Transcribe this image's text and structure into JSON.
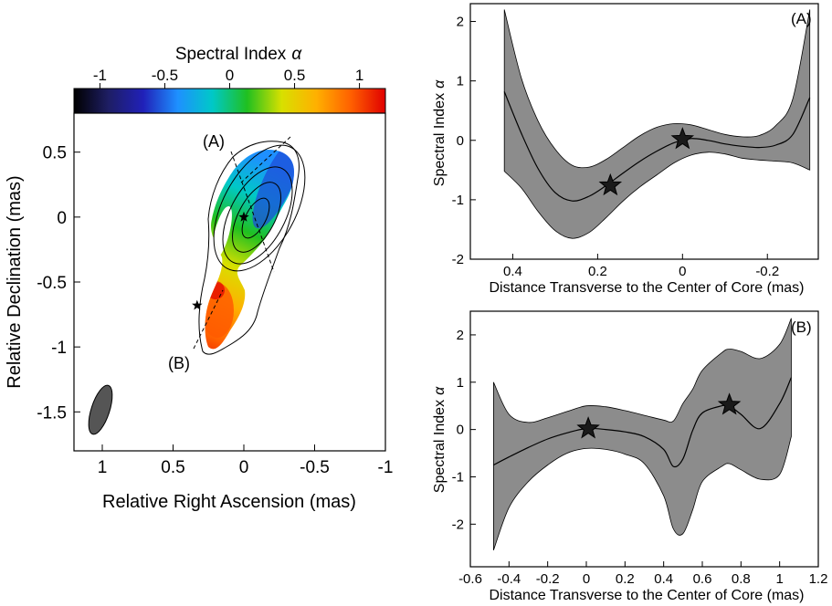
{
  "chart_data": [
    {
      "type": "heatmap",
      "colorbar": {
        "title": "Spectral Index",
        "symbol": "α",
        "ticks": [
          -1,
          -0.5,
          0,
          0.5,
          1
        ],
        "range": [
          -1.2,
          1.2
        ],
        "colors": [
          "#000000",
          "#1e1e64",
          "#2020b8",
          "#1e90ff",
          "#00c8c8",
          "#20c020",
          "#d8e000",
          "#ffb000",
          "#ff6000",
          "#e00000"
        ]
      },
      "xlabel": "Relative Right Ascension (mas)",
      "ylabel": "Relative Declination (mas)",
      "xlim": [
        1.2,
        -1
      ],
      "ylim": [
        -1.8,
        0.8
      ],
      "xticks": [
        1,
        0.5,
        0,
        -0.5,
        -1
      ],
      "yticks": [
        0.5,
        0,
        -0.5,
        -1,
        -1.5
      ],
      "slice_labels": [
        "(A)",
        "(B)"
      ],
      "stars": [
        {
          "x": 0.0,
          "y": 0.0
        },
        {
          "x": 0.33,
          "y": -0.68
        }
      ]
    },
    {
      "type": "area",
      "panel_label": "(A)",
      "xlabel": "Distance Transverse to the Center of Core (mas)",
      "ylabel": "Spectral Index",
      "ylabel_symbol": "α",
      "xlim": [
        0.5,
        -0.32
      ],
      "ylim": [
        -2,
        2.3
      ],
      "xticks": [
        0.4,
        0.2,
        0,
        -0.2
      ],
      "yticks": [
        -2,
        -1,
        0,
        1,
        2
      ],
      "x": [
        0.42,
        0.38,
        0.34,
        0.3,
        0.26,
        0.22,
        0.18,
        0.14,
        0.1,
        0.06,
        0.02,
        -0.02,
        -0.06,
        -0.1,
        -0.14,
        -0.18,
        -0.22,
        -0.26,
        -0.3
      ],
      "series": [
        {
          "values": [
            0.82,
            0.12,
            -0.48,
            -0.88,
            -1.02,
            -0.94,
            -0.76,
            -0.55,
            -0.35,
            -0.18,
            -0.04,
            0.03,
            0.0,
            -0.06,
            -0.1,
            -0.12,
            -0.08,
            0.1,
            0.72
          ]
        },
        {
          "values": [
            2.2,
            1.05,
            0.32,
            -0.15,
            -0.42,
            -0.45,
            -0.32,
            -0.12,
            0.08,
            0.22,
            0.28,
            0.26,
            0.18,
            0.1,
            0.06,
            0.08,
            0.25,
            0.7,
            2.2
          ]
        },
        {
          "values": [
            -0.52,
            -0.8,
            -1.2,
            -1.52,
            -1.65,
            -1.55,
            -1.3,
            -1.02,
            -0.78,
            -0.58,
            -0.38,
            -0.25,
            -0.2,
            -0.23,
            -0.3,
            -0.33,
            -0.35,
            -0.38,
            -0.5
          ]
        }
      ],
      "stars": [
        {
          "x": 0.17,
          "y": -0.76
        },
        {
          "x": 0.0,
          "y": 0.02
        }
      ]
    },
    {
      "type": "area",
      "panel_label": "(B)",
      "xlabel": "Distance Transverse to the Center of Core (mas)",
      "ylabel": "Spectral Index",
      "ylabel_symbol": "α",
      "xlim": [
        -0.6,
        1.2
      ],
      "ylim": [
        -2.9,
        2.5
      ],
      "xticks": [
        -0.6,
        -0.4,
        -0.2,
        0,
        0.2,
        0.4,
        0.6,
        0.8,
        1,
        1.2
      ],
      "yticks": [
        -2,
        -1,
        0,
        1,
        2
      ],
      "x": [
        -0.48,
        -0.4,
        -0.3,
        -0.2,
        -0.1,
        0.0,
        0.1,
        0.2,
        0.3,
        0.4,
        0.45,
        0.5,
        0.55,
        0.6,
        0.7,
        0.74,
        0.8,
        0.9,
        1.0,
        1.06
      ],
      "series": [
        {
          "values": [
            -0.75,
            -0.58,
            -0.38,
            -0.2,
            -0.07,
            0.02,
            0.0,
            -0.05,
            -0.15,
            -0.42,
            -0.78,
            -0.62,
            -0.02,
            0.35,
            0.5,
            0.5,
            0.32,
            0.02,
            0.55,
            1.1
          ]
        },
        {
          "values": [
            1.0,
            0.32,
            0.15,
            0.25,
            0.38,
            0.5,
            0.48,
            0.4,
            0.3,
            0.2,
            0.18,
            0.55,
            0.85,
            1.25,
            1.62,
            1.7,
            1.65,
            1.5,
            1.8,
            2.35
          ]
        },
        {
          "values": [
            -2.55,
            -1.65,
            -1.1,
            -0.75,
            -0.5,
            -0.4,
            -0.42,
            -0.52,
            -0.72,
            -1.4,
            -2.1,
            -2.2,
            -1.7,
            -1.1,
            -0.78,
            -0.72,
            -0.85,
            -1.05,
            -0.95,
            -0.15
          ]
        }
      ],
      "stars": [
        {
          "x": 0.01,
          "y": 0.02
        },
        {
          "x": 0.74,
          "y": 0.52
        }
      ]
    }
  ]
}
